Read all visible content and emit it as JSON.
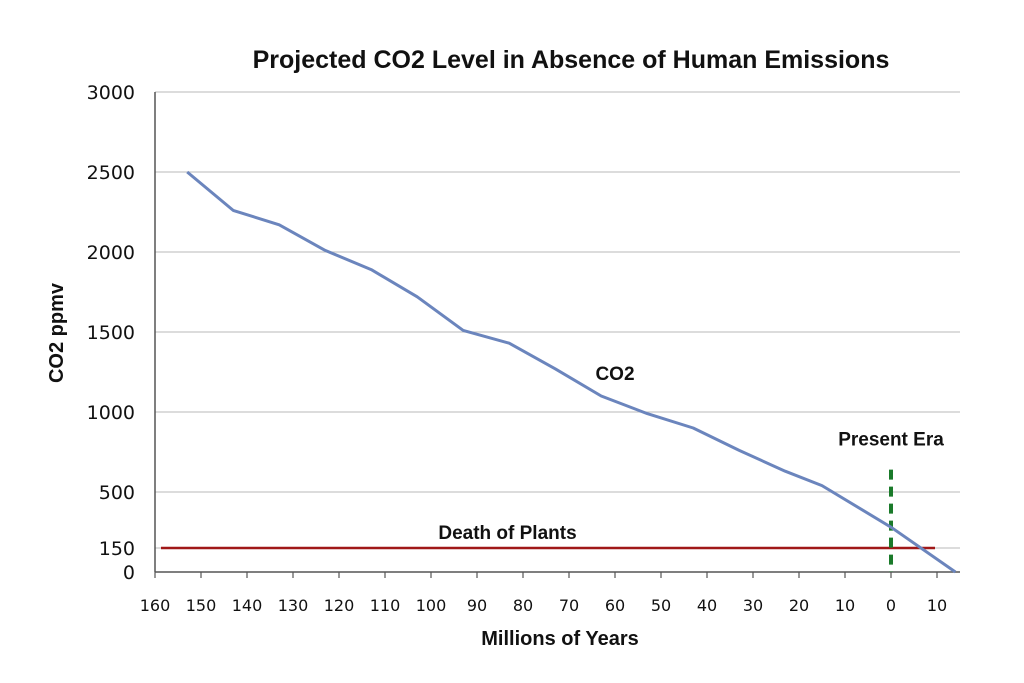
{
  "chart_data": {
    "type": "line",
    "title": "Projected CO2 Level in Absence of Human Emissions",
    "xlabel": "Millions of Years",
    "ylabel": "CO2 ppmv",
    "xlim": [
      160,
      -15
    ],
    "ylim": [
      0,
      3000
    ],
    "grid": true,
    "legend": "none",
    "y_ticks": [
      0,
      150,
      500,
      1000,
      1500,
      2000,
      2500,
      3000
    ],
    "x_tick_values": [
      160,
      150,
      140,
      130,
      120,
      110,
      100,
      90,
      80,
      70,
      60,
      50,
      40,
      30,
      20,
      10,
      0,
      -10
    ],
    "x_tick_labels": [
      "160",
      "150",
      "140",
      "130",
      "120",
      "110",
      "100",
      "90",
      "80",
      "70",
      "60",
      "50",
      "40",
      "30",
      "20",
      "10",
      "0",
      "10"
    ],
    "series": [
      {
        "name": "CO2",
        "color": "#6b85bd",
        "x": [
          153,
          143,
          133,
          123,
          113,
          103,
          93,
          83,
          73,
          63,
          53,
          43,
          33,
          23,
          15,
          0,
          -14
        ],
        "y": [
          2500,
          2260,
          2170,
          2010,
          1890,
          1720,
          1510,
          1430,
          1270,
          1100,
          990,
          900,
          760,
          630,
          540,
          280,
          0
        ]
      }
    ],
    "reference_lines": [
      {
        "type": "horizontal",
        "value": 150,
        "label": "Death of Plants",
        "color": "#a01818"
      },
      {
        "type": "vertical",
        "value": 0,
        "label": "Present Era",
        "color": "#1a7a2a",
        "dashed": true
      }
    ],
    "annotations": [
      {
        "text": "CO2",
        "x": 60,
        "y": 1200
      }
    ]
  }
}
